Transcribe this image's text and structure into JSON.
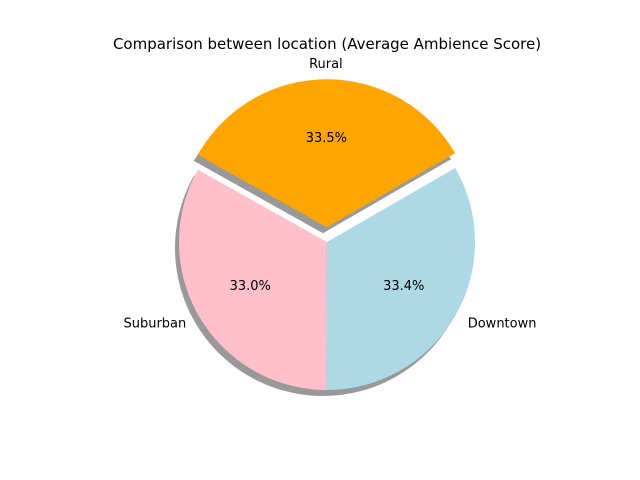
{
  "chart_data": {
    "type": "pie",
    "title": "Comparison between location (Average Ambience Score)",
    "start_angle_deg": 30,
    "direction": "counterclockwise",
    "shadow": true,
    "slices": [
      {
        "label": "Rural",
        "value": 33.5,
        "percent_label": "33.5%",
        "color": "#ffa500",
        "explode": 0.1
      },
      {
        "label": "Suburban",
        "value": 33.0,
        "percent_label": "33.0%",
        "color": "#ffc0cb",
        "explode": 0
      },
      {
        "label": "Downtown",
        "value": 33.4,
        "percent_label": "33.4%",
        "color": "#add8e6",
        "explode": 0
      }
    ]
  }
}
